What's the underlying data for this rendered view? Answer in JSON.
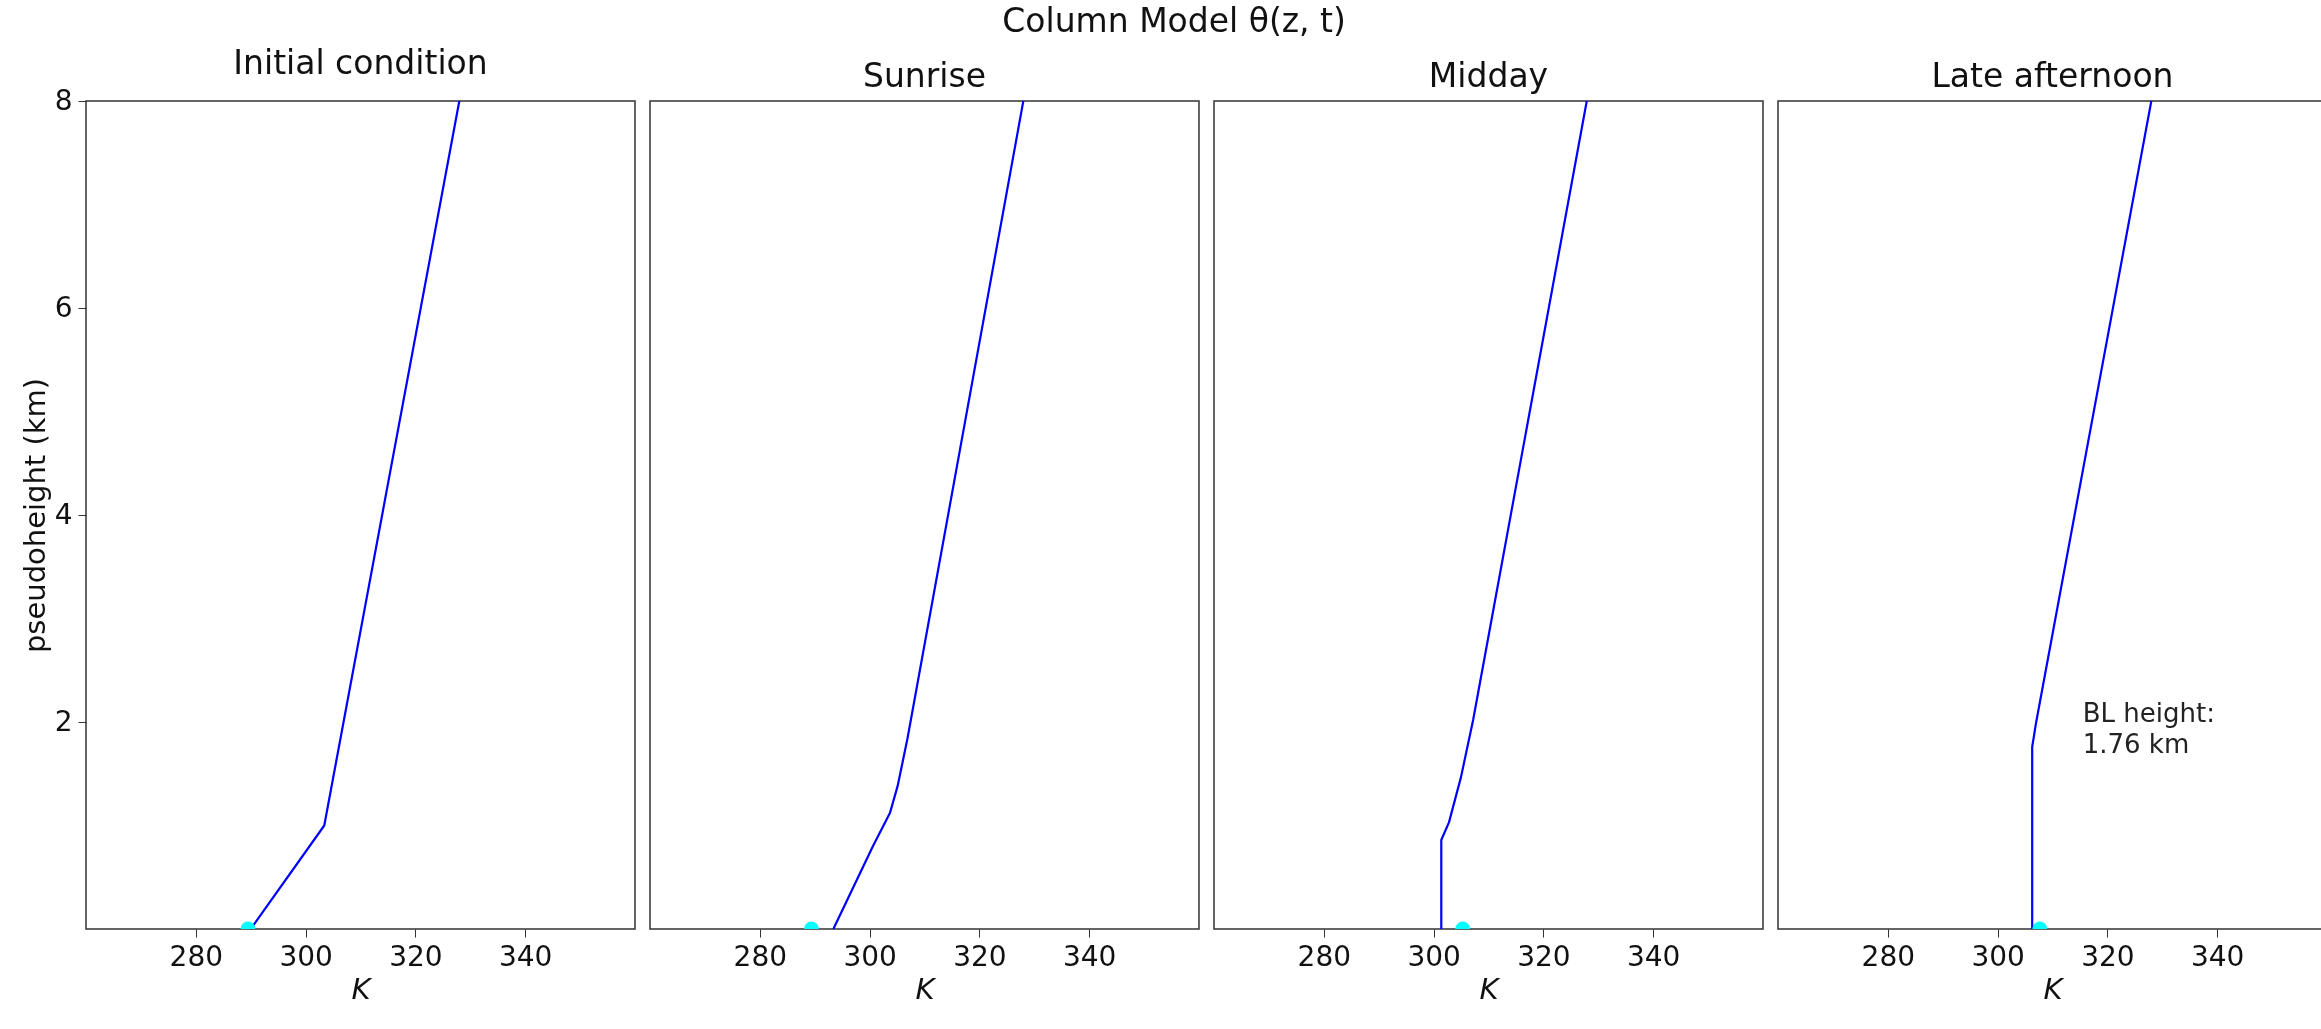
{
  "chart_data": [
    {
      "type": "line",
      "title": "Initial condition",
      "xlabel": "K",
      "ylabel": "pseudoheight (km)",
      "annotations": [
        "Column Model θ(z, t)"
      ],
      "xlim": [
        260,
        360
      ],
      "xticks": [
        280,
        300,
        320,
        340
      ],
      "ylim": [
        0,
        8
      ],
      "yticks": [
        2,
        4,
        6,
        8
      ],
      "grid": false,
      "legend": false,
      "series": [
        {
          "type": "line",
          "color": "#0000ff",
          "x": [
            290,
            303.4,
            328
          ],
          "values": [
            0,
            1,
            8
          ]
        },
        {
          "type": "scatter",
          "color": "#00ffff",
          "marker": "circle",
          "x": [
            289.5
          ],
          "values": [
            0
          ]
        }
      ]
    },
    {
      "type": "line",
      "title": "Sunrise",
      "xlabel": "K",
      "xlim": [
        260,
        360
      ],
      "xticks": [
        280,
        300,
        320,
        340
      ],
      "ylim": [
        0,
        8
      ],
      "tick_labels": "x",
      "grid": false,
      "legend": false,
      "series": [
        {
          "type": "line",
          "color": "#0000ff",
          "x": [
            293.4,
            300.6,
            303.7,
            305.1,
            306.9,
            328
          ],
          "values": [
            0,
            0.8,
            1.12,
            1.38,
            1.84,
            8
          ]
        },
        {
          "type": "scatter",
          "color": "#00ffff",
          "marker": "circle",
          "x": [
            289.4
          ],
          "values": [
            0
          ]
        }
      ]
    },
    {
      "type": "line",
      "title": "Midday",
      "xlabel": "K",
      "xlim": [
        260,
        360
      ],
      "xticks": [
        280,
        300,
        320,
        340
      ],
      "ylim": [
        0,
        8
      ],
      "tick_labels": "x",
      "grid": false,
      "legend": false,
      "series": [
        {
          "type": "line",
          "color": "#0000ff",
          "x": [
            301.4,
            301.4,
            302.8,
            305,
            307.2,
            327.9
          ],
          "values": [
            0,
            0.86,
            1.03,
            1.47,
            2.02,
            8
          ]
        },
        {
          "type": "scatter",
          "color": "#00ffff",
          "marker": "circle",
          "x": [
            305.3
          ],
          "values": [
            0
          ]
        }
      ]
    },
    {
      "type": "line",
      "title": "Late afternoon",
      "xlabel": "K",
      "xlim": [
        260,
        360
      ],
      "xticks": [
        280,
        300,
        320,
        340
      ],
      "ylim": [
        0,
        8
      ],
      "tick_labels": "x",
      "grid": false,
      "legend": false,
      "annotations": [
        "BL height:\n1.76 km"
      ],
      "series": [
        {
          "type": "line",
          "color": "#0000ff",
          "x": [
            306.3,
            306.3,
            307,
            328
          ],
          "values": [
            0,
            1.76,
            1.99,
            8
          ]
        },
        {
          "type": "scatter",
          "color": "#00ffff",
          "marker": "circle",
          "x": [
            307.7
          ],
          "values": [
            0
          ]
        }
      ]
    }
  ]
}
